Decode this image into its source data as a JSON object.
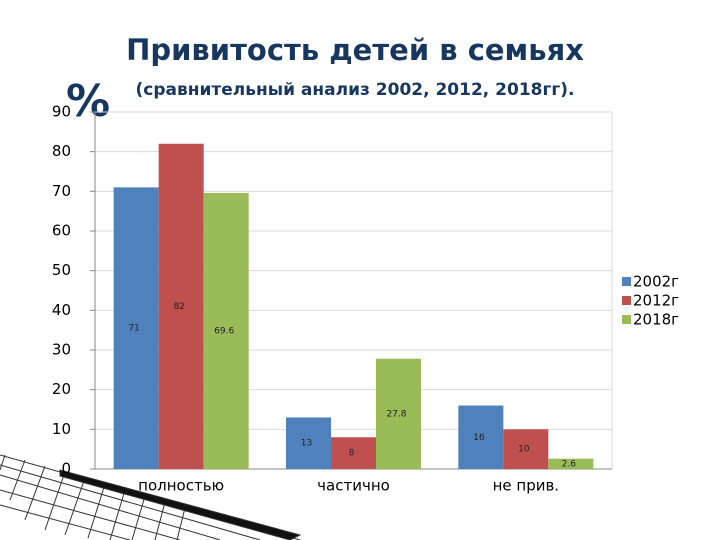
{
  "chart_data": {
    "type": "bar",
    "title": "Привитость детей в семьях",
    "subtitle": "(сравнительный анализ  2002, 2012, 2018гг).",
    "ylabel": "%",
    "categories": [
      "полностью",
      "частично",
      "не прив."
    ],
    "series": [
      {
        "name": "2002г",
        "color": "#4f81bd",
        "values": [
          71,
          13,
          16
        ]
      },
      {
        "name": "2012г",
        "color": "#c0504d",
        "values": [
          82,
          8,
          10
        ]
      },
      {
        "name": "2018г",
        "color": "#9bbb59",
        "values": [
          69.6,
          27.8,
          2.6
        ]
      }
    ],
    "ylim": [
      0,
      90
    ],
    "yticks": [
      0,
      10,
      20,
      30,
      40,
      50,
      60,
      70,
      80,
      90
    ],
    "grid": true,
    "legend": "right"
  }
}
